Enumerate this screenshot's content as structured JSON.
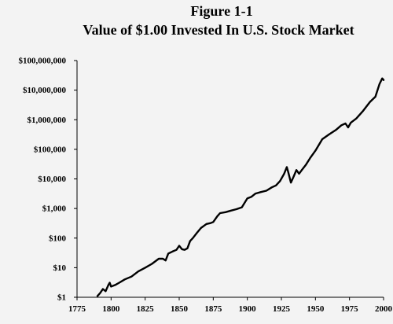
{
  "chart_data": {
    "type": "line",
    "title": "Figure 1-1",
    "subtitle": "Value of $1.00 Invested In U.S. Stock Market",
    "xlabel": "",
    "ylabel": "",
    "x_ticks": [
      "1775",
      "1800",
      "1825",
      "1850",
      "1875",
      "1900",
      "1925",
      "1950",
      "1975",
      "2000"
    ],
    "y_ticks": [
      "$1",
      "$10",
      "$100",
      "$1,000",
      "$10,000",
      "$100,000",
      "$1,000,000",
      "$10,000,000",
      "$100,000,000"
    ],
    "xlim": [
      1775,
      2000
    ],
    "ylim": [
      1,
      100000000
    ],
    "yscale": "log",
    "grid": false,
    "series": [
      {
        "values": [
          [
            1790,
            1.1
          ],
          [
            1792,
            1.4
          ],
          [
            1794,
            1.9
          ],
          [
            1796,
            1.6
          ],
          [
            1798,
            2.6
          ],
          [
            1799,
            3.1
          ],
          [
            1800,
            2.3
          ],
          [
            1803,
            2.6
          ],
          [
            1806,
            3.1
          ],
          [
            1810,
            4.0
          ],
          [
            1815,
            5.0
          ],
          [
            1820,
            7.5
          ],
          [
            1825,
            10.0
          ],
          [
            1830,
            13.5
          ],
          [
            1835,
            20.0
          ],
          [
            1838,
            20.0
          ],
          [
            1840,
            17.5
          ],
          [
            1842,
            30.0
          ],
          [
            1845,
            35.0
          ],
          [
            1848,
            40.0
          ],
          [
            1850,
            55.0
          ],
          [
            1852,
            42.0
          ],
          [
            1854,
            40.0
          ],
          [
            1856,
            45.0
          ],
          [
            1858,
            80.0
          ],
          [
            1860,
            100.0
          ],
          [
            1863,
            150.0
          ],
          [
            1866,
            220.0
          ],
          [
            1870,
            300.0
          ],
          [
            1873,
            320.0
          ],
          [
            1875,
            350.0
          ],
          [
            1878,
            550.0
          ],
          [
            1880,
            700.0
          ],
          [
            1884,
            750.0
          ],
          [
            1888,
            850.0
          ],
          [
            1892,
            950.0
          ],
          [
            1896,
            1100.0
          ],
          [
            1900,
            2200.0
          ],
          [
            1903,
            2500.0
          ],
          [
            1906,
            3200.0
          ],
          [
            1910,
            3600.0
          ],
          [
            1914,
            4000.0
          ],
          [
            1918,
            5200.0
          ],
          [
            1921,
            6000.0
          ],
          [
            1924,
            8500.0
          ],
          [
            1927,
            15000.0
          ],
          [
            1929,
            25000.0
          ],
          [
            1930,
            17000.0
          ],
          [
            1932,
            7500.0
          ],
          [
            1934,
            12000.0
          ],
          [
            1936,
            20000.0
          ],
          [
            1938,
            15000.0
          ],
          [
            1940,
            20000.0
          ],
          [
            1943,
            30000.0
          ],
          [
            1946,
            50000.0
          ],
          [
            1950,
            90000.0
          ],
          [
            1955,
            220000.0
          ],
          [
            1960,
            320000.0
          ],
          [
            1965,
            450000.0
          ],
          [
            1969,
            650000.0
          ],
          [
            1972,
            750000.0
          ],
          [
            1974,
            550000.0
          ],
          [
            1976,
            800000.0
          ],
          [
            1980,
            1100000.0
          ],
          [
            1985,
            2000000.0
          ],
          [
            1990,
            4000000.0
          ],
          [
            1994,
            6000000.0
          ],
          [
            1997,
            16000000.0
          ],
          [
            1999,
            25000000.0
          ],
          [
            2000,
            22000000.0
          ]
        ]
      }
    ]
  }
}
